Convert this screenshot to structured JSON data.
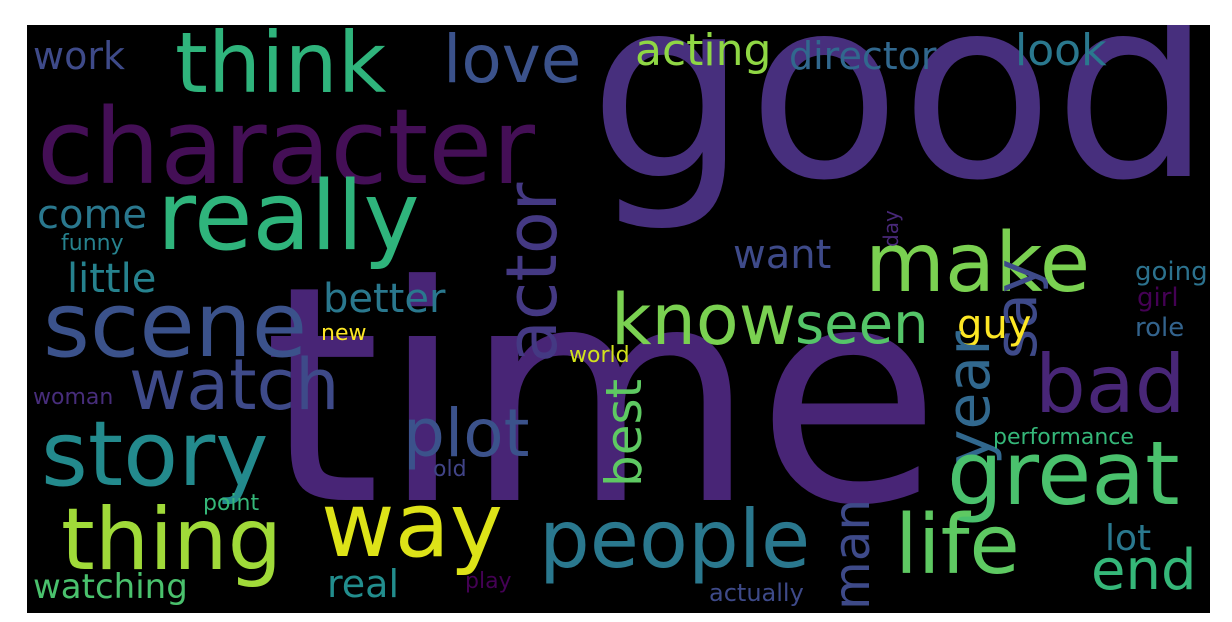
{
  "background_color": "#000000",
  "words": [
    {
      "key": "good",
      "text": "good",
      "color": "#472f7d"
    },
    {
      "key": "time",
      "text": "time",
      "color": "#482576"
    },
    {
      "key": "character",
      "text": "character",
      "color": "#440f56"
    },
    {
      "key": "think",
      "text": "think",
      "color": "#2fb47c"
    },
    {
      "key": "love",
      "text": "love",
      "color": "#3b528b"
    },
    {
      "key": "acting",
      "text": "acting",
      "color": "#8fd744"
    },
    {
      "key": "director",
      "text": "director",
      "color": "#31688e"
    },
    {
      "key": "look",
      "text": "look",
      "color": "#2a788e"
    },
    {
      "key": "work",
      "text": "work",
      "color": "#3e4a89"
    },
    {
      "key": "really",
      "text": "really",
      "color": "#2fb47c"
    },
    {
      "key": "make",
      "text": "make",
      "color": "#7ad151"
    },
    {
      "key": "scene",
      "text": "scene",
      "color": "#3b528b"
    },
    {
      "key": "come",
      "text": "come",
      "color": "#2a788e"
    },
    {
      "key": "funny",
      "text": "funny",
      "color": "#26828e"
    },
    {
      "key": "little",
      "text": "little",
      "color": "#26828e"
    },
    {
      "key": "actor",
      "text": "actor",
      "color": "#443983"
    },
    {
      "key": "know",
      "text": "know",
      "color": "#7ad151"
    },
    {
      "key": "seen",
      "text": "seen",
      "color": "#54c568"
    },
    {
      "key": "say",
      "text": "say",
      "color": "#3e4a89"
    },
    {
      "key": "want",
      "text": "want",
      "color": "#3e4a89"
    },
    {
      "key": "better",
      "text": "better",
      "color": "#2a788e"
    },
    {
      "key": "guy",
      "text": "guy",
      "color": "#fde725"
    },
    {
      "key": "new",
      "text": "new",
      "color": "#fde725"
    },
    {
      "key": "world",
      "text": "world",
      "color": "#d2e21b"
    },
    {
      "key": "watch",
      "text": "watch",
      "color": "#3e4a89"
    },
    {
      "key": "bad",
      "text": "bad",
      "color": "#482677"
    },
    {
      "key": "year",
      "text": "year",
      "color": "#31688e"
    },
    {
      "key": "day",
      "text": "day",
      "color": "#482878"
    },
    {
      "key": "going",
      "text": "going",
      "color": "#2c728e"
    },
    {
      "key": "girl",
      "text": "girl",
      "color": "#440154"
    },
    {
      "key": "role",
      "text": "role",
      "color": "#33638d"
    },
    {
      "key": "story",
      "text": "story",
      "color": "#238a8d"
    },
    {
      "key": "plot",
      "text": "plot",
      "color": "#3b528b"
    },
    {
      "key": "best",
      "text": "best",
      "color": "#5ec962"
    },
    {
      "key": "great",
      "text": "great",
      "color": "#4ac16d"
    },
    {
      "key": "woman",
      "text": "woman",
      "color": "#472d7b"
    },
    {
      "key": "performance",
      "text": "performance",
      "color": "#35b779"
    },
    {
      "key": "old",
      "text": "old",
      "color": "#414487"
    },
    {
      "key": "thing",
      "text": "thing",
      "color": "#a0da39"
    },
    {
      "key": "way",
      "text": "way",
      "color": "#dde318"
    },
    {
      "key": "people",
      "text": "people",
      "color": "#2a788e"
    },
    {
      "key": "life",
      "text": "life",
      "color": "#5ec962"
    },
    {
      "key": "end",
      "text": "end",
      "color": "#35b779"
    },
    {
      "key": "point",
      "text": "point",
      "color": "#35b779"
    },
    {
      "key": "man",
      "text": "man",
      "color": "#3e4a89"
    },
    {
      "key": "lot",
      "text": "lot",
      "color": "#2a788e"
    },
    {
      "key": "watching",
      "text": "watching",
      "color": "#4ac16d"
    },
    {
      "key": "real",
      "text": "real",
      "color": "#228d8d"
    },
    {
      "key": "play",
      "text": "play",
      "color": "#440154"
    },
    {
      "key": "actually",
      "text": "actually",
      "color": "#3e4a89"
    }
  ]
}
